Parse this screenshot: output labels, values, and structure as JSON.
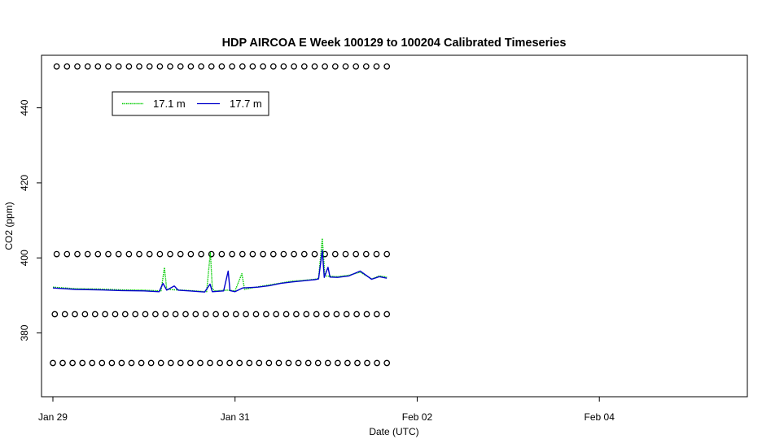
{
  "chart_data": {
    "type": "line",
    "title": "HDP AIRCOA E  Week 100129 to 100204  Calibrated Timeseries",
    "xlabel": "Date (UTC)",
    "ylabel": "CO2 (ppm)",
    "x_unit": "date (UTC)",
    "xlim": [
      "2010-01-28T21:00",
      "2010-02-05T15:00"
    ],
    "ylim": [
      363,
      454
    ],
    "x_ticks": [
      {
        "label": "Jan 29",
        "date": "2010-01-29T00:00"
      },
      {
        "label": "Jan 31",
        "date": "2010-01-31T00:00"
      },
      {
        "label": "Feb 02",
        "date": "2010-02-02T00:00"
      },
      {
        "label": "Feb 04",
        "date": "2010-02-04T00:00"
      }
    ],
    "y_ticks": [
      380,
      400,
      420,
      440
    ],
    "grid": false,
    "legend_position": "top-left",
    "series": [
      {
        "name": "17.1 m",
        "color": "#00cc00",
        "style": "dotted",
        "points": [
          [
            "2010-01-29T00:00",
            392.2
          ],
          [
            "2010-01-29T06:00",
            391.8
          ],
          [
            "2010-01-29T12:00",
            391.7
          ],
          [
            "2010-01-29T18:00",
            391.5
          ],
          [
            "2010-01-30T00:00",
            391.4
          ],
          [
            "2010-01-30T04:30",
            391.2
          ],
          [
            "2010-01-30T05:24",
            397.4
          ],
          [
            "2010-01-30T06:00",
            391.6
          ],
          [
            "2010-01-30T12:00",
            391.3
          ],
          [
            "2010-01-30T16:30",
            391.0
          ],
          [
            "2010-01-30T17:30",
            401.5
          ],
          [
            "2010-01-30T18:00",
            392.0
          ],
          [
            "2010-01-30T18:30",
            391.2
          ],
          [
            "2010-01-30T22:00",
            391.4
          ],
          [
            "2010-01-31T00:00",
            391.2
          ],
          [
            "2010-01-31T01:48",
            395.8
          ],
          [
            "2010-01-31T02:30",
            391.6
          ],
          [
            "2010-01-31T06:00",
            392.3
          ],
          [
            "2010-01-31T09:00",
            392.8
          ],
          [
            "2010-01-31T12:00",
            393.3
          ],
          [
            "2010-01-31T15:00",
            393.8
          ],
          [
            "2010-01-31T18:00",
            394.0
          ],
          [
            "2010-01-31T21:00",
            394.3
          ],
          [
            "2010-01-31T22:00",
            394.5
          ],
          [
            "2010-01-31T23:00",
            405.2
          ],
          [
            "2010-01-31T23:40",
            395.2
          ],
          [
            "2010-02-01T03:00",
            395.0
          ],
          [
            "2010-02-01T06:00",
            395.4
          ],
          [
            "2010-02-01T09:00",
            396.2
          ],
          [
            "2010-02-01T12:00",
            394.4
          ],
          [
            "2010-02-01T14:00",
            395.2
          ],
          [
            "2010-02-01T16:00",
            394.9
          ]
        ]
      },
      {
        "name": "17.7 m",
        "color": "#0000cc",
        "style": "solid",
        "points": [
          [
            "2010-01-29T00:00",
            392.0
          ],
          [
            "2010-01-29T06:00",
            391.6
          ],
          [
            "2010-01-29T12:00",
            391.5
          ],
          [
            "2010-01-29T18:00",
            391.3
          ],
          [
            "2010-01-30T00:00",
            391.2
          ],
          [
            "2010-01-30T04:00",
            391.0
          ],
          [
            "2010-01-30T05:00",
            393.2
          ],
          [
            "2010-01-30T06:00",
            391.4
          ],
          [
            "2010-01-30T08:00",
            392.5
          ],
          [
            "2010-01-30T09:00",
            391.4
          ],
          [
            "2010-01-30T12:00",
            391.2
          ],
          [
            "2010-01-30T16:00",
            390.9
          ],
          [
            "2010-01-30T17:24",
            393.0
          ],
          [
            "2010-01-30T18:00",
            391.0
          ],
          [
            "2010-01-30T21:00",
            391.2
          ],
          [
            "2010-01-30T22:12",
            396.5
          ],
          [
            "2010-01-30T22:40",
            391.3
          ],
          [
            "2010-01-31T00:00",
            391.0
          ],
          [
            "2010-01-31T02:00",
            392.0
          ],
          [
            "2010-01-31T06:00",
            392.2
          ],
          [
            "2010-01-31T09:00",
            392.6
          ],
          [
            "2010-01-31T12:00",
            393.2
          ],
          [
            "2010-01-31T15:00",
            393.6
          ],
          [
            "2010-01-31T18:00",
            393.9
          ],
          [
            "2010-01-31T21:00",
            394.2
          ],
          [
            "2010-01-31T22:00",
            394.4
          ],
          [
            "2010-01-31T23:00",
            402.0
          ],
          [
            "2010-01-31T23:30",
            394.8
          ],
          [
            "2010-02-01T00:30",
            397.5
          ],
          [
            "2010-02-01T01:00",
            394.9
          ],
          [
            "2010-02-01T03:00",
            394.8
          ],
          [
            "2010-02-01T06:00",
            395.2
          ],
          [
            "2010-02-01T09:00",
            396.5
          ],
          [
            "2010-02-01T12:00",
            394.3
          ],
          [
            "2010-02-01T14:00",
            395.0
          ],
          [
            "2010-02-01T16:00",
            394.6
          ]
        ]
      },
      {
        "name": "",
        "type": "scatter",
        "marker": "open-circle",
        "color": "#000000",
        "rows": [
          {
            "y": 451,
            "x_start": "2010-01-29T01:00",
            "x_end": "2010-02-01T16:00",
            "count": 33
          },
          {
            "y": 401,
            "x_start": "2010-01-29T01:00",
            "x_end": "2010-02-01T16:00",
            "count": 33
          },
          {
            "y": 385,
            "x_start": "2010-01-29T00:30",
            "x_end": "2010-02-01T16:00",
            "count": 34
          },
          {
            "y": 372,
            "x_start": "2010-01-29T00:00",
            "x_end": "2010-02-01T16:00",
            "count": 35
          }
        ]
      }
    ]
  }
}
